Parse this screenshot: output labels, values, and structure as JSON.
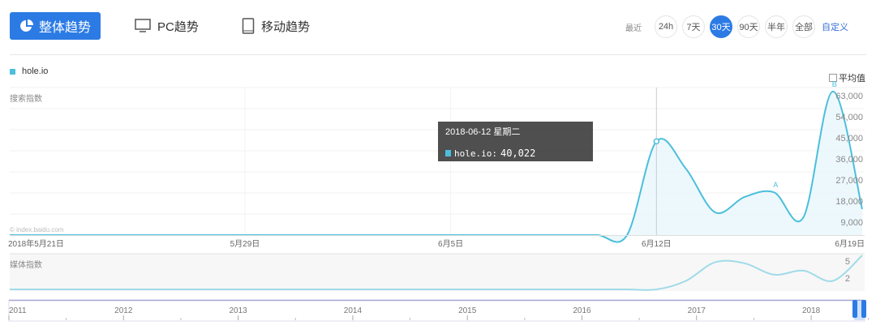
{
  "tabs": {
    "overall": "整体趋势",
    "pc": "PC趋势",
    "mobile": "移动趋势"
  },
  "range": {
    "label": "最近",
    "options": [
      "24h",
      "7天",
      "30天",
      "90天",
      "半年",
      "全部"
    ],
    "selected": "30天",
    "custom": "自定义"
  },
  "legend": {
    "series": "hole.io",
    "avg_label": "平均值",
    "avg_checked": false
  },
  "colors": {
    "accent": "#2c7be5",
    "series": "#4bbfdb",
    "fill": "#e8f6fc",
    "link": "#3a6fd8"
  },
  "search_label": "搜索指数",
  "watermark": "© index.baidu.com",
  "tooltip": {
    "date": "2018-06-12 星期二",
    "series": "hole.io:",
    "value": "40,022"
  },
  "chart_data": {
    "type": "area",
    "x": [
      "2018-05-21",
      "2018-05-22",
      "2018-05-23",
      "2018-05-24",
      "2018-05-25",
      "2018-05-26",
      "2018-05-27",
      "2018-05-28",
      "2018-05-29",
      "2018-05-30",
      "2018-05-31",
      "2018-06-01",
      "2018-06-02",
      "2018-06-03",
      "2018-06-04",
      "2018-06-05",
      "2018-06-06",
      "2018-06-07",
      "2018-06-08",
      "2018-06-09",
      "2018-06-10",
      "2018-06-11",
      "2018-06-12",
      "2018-06-13",
      "2018-06-14",
      "2018-06-15",
      "2018-06-16",
      "2018-06-17",
      "2018-06-18",
      "2018-06-19"
    ],
    "series": [
      {
        "name": "hole.io",
        "values": [
          0,
          0,
          0,
          0,
          0,
          0,
          0,
          0,
          0,
          0,
          0,
          0,
          0,
          0,
          0,
          0,
          0,
          0,
          0,
          0,
          0,
          0,
          40022,
          28400,
          9700,
          16300,
          18300,
          7600,
          61300,
          11100
        ]
      }
    ],
    "xticks": [
      "2018年5月21日",
      "5月29日",
      "6月5日",
      "6月12日",
      "6月19日"
    ],
    "yticks": [
      "9,000",
      "18,000",
      "27,000",
      "36,000",
      "45,000",
      "54,000",
      "63,000"
    ],
    "ylim": [
      0,
      63000
    ],
    "annotations": [
      {
        "label": "A",
        "x": "2018-06-16"
      },
      {
        "label": "B",
        "x": "2018-06-18"
      }
    ],
    "grid": true
  },
  "media": {
    "label": "媒体指数",
    "values": [
      0,
      0,
      0,
      0,
      0,
      0,
      0,
      0,
      0,
      0,
      0,
      0,
      0,
      0,
      0,
      0,
      0,
      0,
      0,
      0,
      0,
      0,
      0,
      1.5,
      4.8,
      4.6,
      2.6,
      3.3,
      1.5,
      6
    ],
    "yticks": [
      "2",
      "5"
    ]
  },
  "timeline": {
    "years": [
      "2011",
      "2012",
      "2013",
      "2014",
      "2015",
      "2016",
      "2017",
      "2018"
    ]
  }
}
